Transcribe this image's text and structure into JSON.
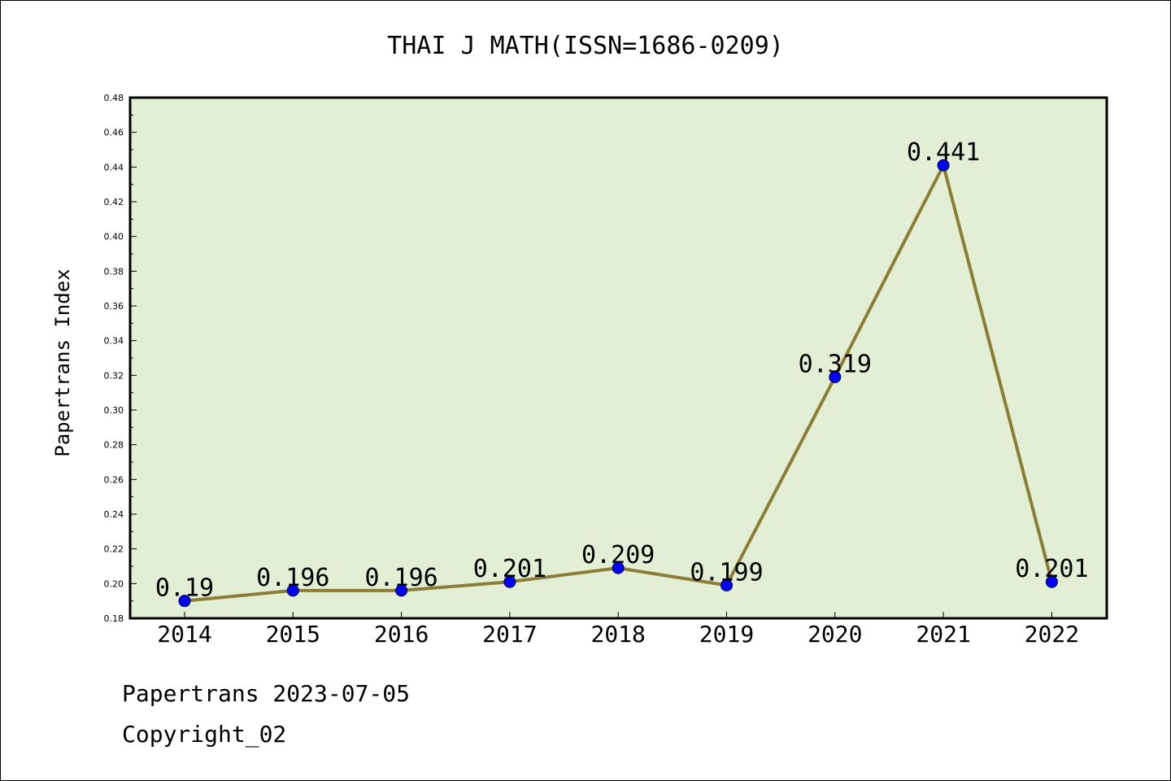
{
  "chart_data": {
    "type": "line",
    "title": "THAI J MATH(ISSN=1686-0209)",
    "xlabel": "",
    "ylabel": "Papertrans Index",
    "categories": [
      "2014",
      "2015",
      "2016",
      "2017",
      "2018",
      "2019",
      "2020",
      "2021",
      "2022"
    ],
    "series": [
      {
        "values": [
          0.19,
          0.196,
          0.196,
          0.201,
          0.209,
          0.199,
          0.319,
          0.441,
          0.201
        ],
        "labels": [
          "0.19",
          "0.196",
          "0.196",
          "0.201",
          "0.209",
          "0.199",
          "0.319",
          "0.441",
          "0.201"
        ],
        "line_color": "#8b7d35",
        "marker_color": "#0000ff"
      }
    ],
    "ylim": [
      0.18,
      0.48
    ],
    "yticks": [
      "0.18",
      "0.20",
      "0.22",
      "0.24",
      "0.26",
      "0.28",
      "0.30",
      "0.32",
      "0.34",
      "0.36",
      "0.38",
      "0.40",
      "0.42",
      "0.44",
      "0.46",
      "0.48"
    ],
    "plot_background": "#e2efd5",
    "grid": false,
    "legend": "none"
  },
  "footer": {
    "date_line": "Papertrans 2023-07-05",
    "copyright": "Copyright_02"
  }
}
